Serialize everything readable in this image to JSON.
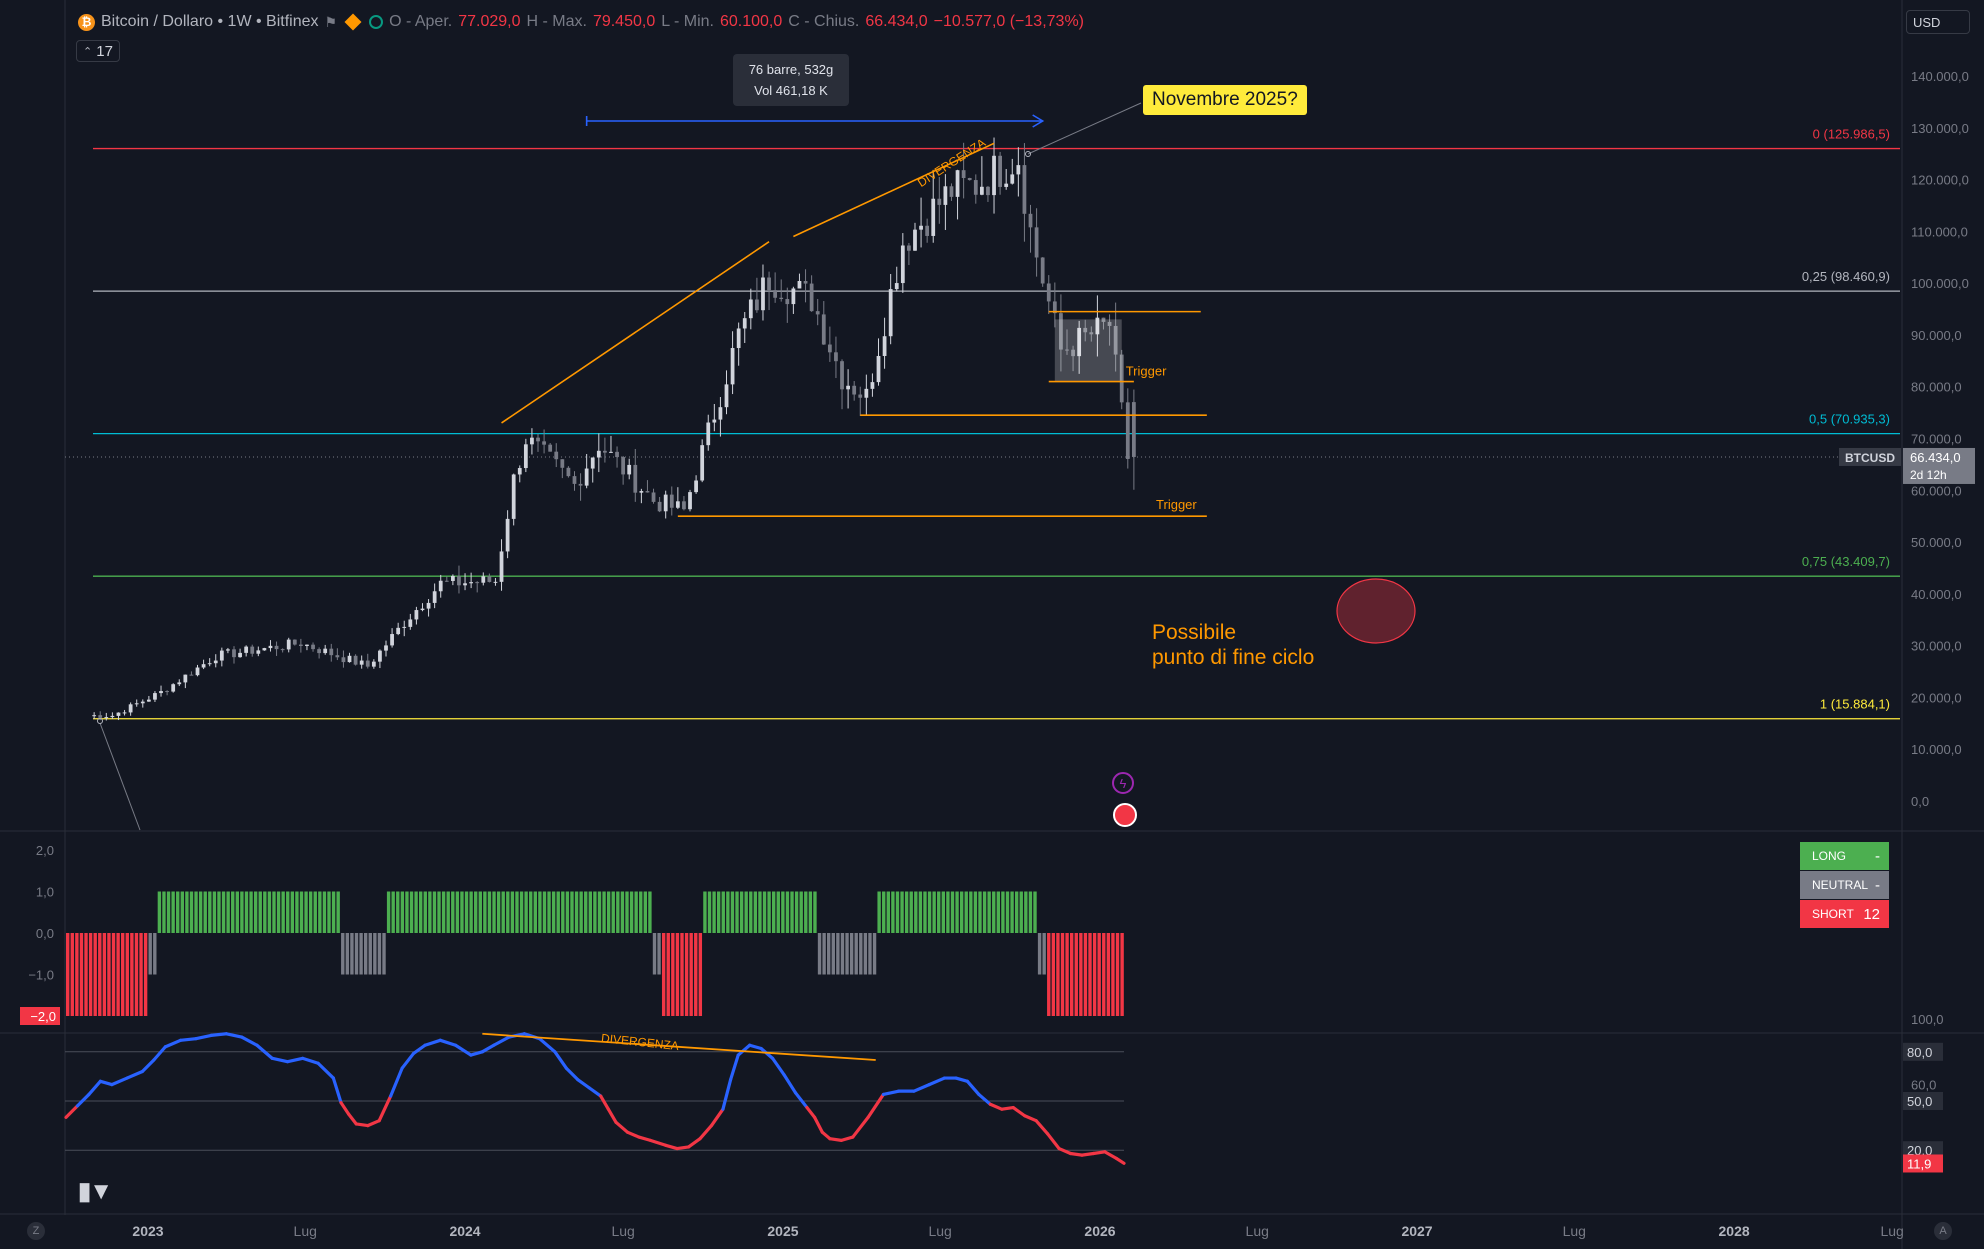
{
  "header": {
    "symbol": "Bitcoin / Dollaro • 1W • Bitfinex",
    "open_label": "O - Aper.",
    "open": "77.029,0",
    "high_label": "H - Max.",
    "high": "79.450,0",
    "low_label": "L - Min.",
    "low": "60.100,0",
    "close_label": "C - Chius.",
    "close": "66.434,0",
    "change": "−10.577,0 (−13,73%)",
    "collapse_count": "17",
    "currency": "USD"
  },
  "tooltip": {
    "bars": "76 barre, 532g",
    "vol": "Vol 461,18 K"
  },
  "callout": "Novembre 2025?",
  "note": {
    "line1": "Possibile",
    "line2": "punto di fine ciclo"
  },
  "price_tag": {
    "symbol": "BTCUSD",
    "price": "66.434,0",
    "countdown": "2d 12h"
  },
  "signal_panel": {
    "long_label": "LONG",
    "long_value": "-",
    "neutral_label": "NEUTRAL",
    "neutral_value": "-",
    "short_label": "SHORT",
    "short_value": "12"
  },
  "buttons": {
    "z": "Z",
    "a": "A"
  },
  "colors": {
    "background": "#131722",
    "grid": "#1e222d",
    "up_candle": "#d1d4dc",
    "down_candle": "#787b86",
    "fib_0": "#f23645",
    "fib_025": "#b2b5be",
    "fib_05": "#00bcd4",
    "fib_075": "#4caf50",
    "fib_1": "#ffeb3b",
    "orange": "#ff9800",
    "osc_high": "#2962ff",
    "osc_low": "#f23645",
    "bull": "#4caf50",
    "bear": "#f23645",
    "neutral": "#787b86"
  },
  "chart_data": [
    {
      "type": "candlestick",
      "title": "Bitcoin / Dollaro • 1W • Bitfinex",
      "price_axis": {
        "min": 0,
        "max": 140000,
        "ticks": [
          "140.000,0",
          "130.000,0",
          "120.000,0",
          "110.000,0",
          "100.000,0",
          "90.000,0",
          "80.000,0",
          "70.000,0",
          "60.000,0",
          "50.000,0",
          "40.000,0",
          "30.000,0",
          "20.000,0",
          "10.000,0",
          "0,0"
        ]
      },
      "time_axis": {
        "start": "2022-10-24",
        "end": "2028-10-01",
        "labels": [
          "2023",
          "Lug",
          "2024",
          "Lug",
          "2025",
          "Lug",
          "2026",
          "Lug",
          "2027",
          "Lug",
          "2028",
          "Lug"
        ]
      },
      "fib_levels": [
        {
          "label": "0 (125.986,5)",
          "value": 125986.5
        },
        {
          "label": "0,25 (98.460,9)",
          "value": 98460.9
        },
        {
          "label": "0,5 (70.935,3)",
          "value": 70935.3
        },
        {
          "label": "0,75 (43.409,7)",
          "value": 43409.7
        },
        {
          "label": "1 (15.884,1)",
          "value": 15884.1
        }
      ],
      "annotations": {
        "divergence": "DIVERGENZA",
        "trigger": "Trigger"
      },
      "key_points": [
        {
          "date": "2022-11-21",
          "close": 16500
        },
        {
          "date": "2023-01-16",
          "close": 21000
        },
        {
          "date": "2023-03-20",
          "close": 28000
        },
        {
          "date": "2023-06-26",
          "close": 30500
        },
        {
          "date": "2023-09-11",
          "close": 26000
        },
        {
          "date": "2023-10-23",
          "close": 34500
        },
        {
          "date": "2023-12-04",
          "close": 42000
        },
        {
          "date": "2024-02-05",
          "close": 42500
        },
        {
          "date": "2024-02-26",
          "close": 62000
        },
        {
          "date": "2024-03-11",
          "close": 70000
        },
        {
          "date": "2024-05-06",
          "close": 61000
        },
        {
          "date": "2024-06-03",
          "close": 69000
        },
        {
          "date": "2024-08-05",
          "close": 58000
        },
        {
          "date": "2024-09-09",
          "close": 56000
        },
        {
          "date": "2024-11-11",
          "close": 90000
        },
        {
          "date": "2024-12-16",
          "close": 101000
        },
        {
          "date": "2025-02-03",
          "close": 97000
        },
        {
          "date": "2025-03-10",
          "close": 82000
        },
        {
          "date": "2025-04-07",
          "close": 78000
        },
        {
          "date": "2025-05-19",
          "close": 108000
        },
        {
          "date": "2025-07-14",
          "close": 118000
        },
        {
          "date": "2025-08-11",
          "close": 119000
        },
        {
          "date": "2025-09-29",
          "close": 124500
        },
        {
          "date": "2025-10-13",
          "close": 110000
        },
        {
          "date": "2025-11-17",
          "close": 87000
        },
        {
          "date": "2026-01-12",
          "close": 92000
        },
        {
          "date": "2026-02-02",
          "close": 66434
        }
      ],
      "last_candle": {
        "open": 77029,
        "high": 79450,
        "low": 60100,
        "close": 66434
      }
    },
    {
      "type": "bar",
      "name": "signal",
      "y_axis": {
        "min": -2,
        "max": 2,
        "ticks": [
          "2,0",
          "1,0",
          "0,0",
          "−1,0",
          "−2,0"
        ]
      },
      "weekly_values": [
        -2,
        -2,
        -2,
        -2,
        -2,
        -2,
        -2,
        -2,
        -2,
        -2,
        -2,
        -2,
        -2,
        -2,
        -2,
        -2,
        -2,
        -2,
        -1,
        -1,
        1,
        1,
        1,
        1,
        1,
        1,
        1,
        1,
        1,
        1,
        1,
        1,
        1,
        1,
        1,
        1,
        1,
        1,
        1,
        1,
        1,
        1,
        1,
        1,
        1,
        1,
        1,
        1,
        1,
        1,
        1,
        1,
        1,
        1,
        1,
        1,
        1,
        1,
        1,
        1,
        -1,
        -1,
        -1,
        -1,
        -1,
        -1,
        -1,
        -1,
        -1,
        -1,
        1,
        1,
        1,
        1,
        1,
        1,
        1,
        1,
        1,
        1,
        1,
        1,
        1,
        1,
        1,
        1,
        1,
        1,
        1,
        1,
        1,
        1,
        1,
        1,
        1,
        1,
        1,
        1,
        1,
        1,
        1,
        1,
        1,
        1,
        1,
        1,
        1,
        1,
        1,
        1,
        1,
        1,
        1,
        1,
        1,
        1,
        1,
        1,
        1,
        1,
        1,
        1,
        1,
        1,
        1,
        1,
        1,
        1,
        -1,
        -1,
        -2,
        -2,
        -2,
        -2,
        -2,
        -2,
        -2,
        -2,
        -2,
        1,
        1,
        1,
        1,
        1,
        1,
        1,
        1,
        1,
        1,
        1,
        1,
        1,
        1,
        1,
        1,
        1,
        1,
        1,
        1,
        1,
        1,
        1,
        1,
        1,
        -1,
        -1,
        -1,
        -1,
        -1,
        -1,
        -1,
        -1,
        -1,
        -1,
        -1,
        -1,
        -1,
        1,
        1,
        1,
        1,
        1,
        1,
        1,
        1,
        1,
        1,
        1,
        1,
        1,
        1,
        1,
        1,
        1,
        1,
        1,
        1,
        1,
        1,
        1,
        1,
        1,
        1,
        1,
        1,
        1,
        1,
        1,
        1,
        1,
        1,
        1,
        -1,
        -1,
        -2,
        -2,
        -2,
        -2,
        -2,
        -2,
        -2,
        -2,
        -2,
        -2,
        -2,
        -2,
        -2,
        -2,
        -2,
        -2,
        -2
      ]
    },
    {
      "type": "line",
      "name": "oscillator",
      "y_axis": {
        "min": 0,
        "max": 100,
        "ticks": [
          "100,0",
          "60,0"
        ],
        "levels": [
          "80,0",
          "50,0",
          "20,0"
        ]
      },
      "current_value": "11,9",
      "annotation": "DIVERGENZA",
      "points": [
        [
          0,
          40
        ],
        [
          3,
          47
        ],
        [
          6,
          54
        ],
        [
          9,
          62
        ],
        [
          12,
          60
        ],
        [
          16,
          64
        ],
        [
          20,
          68
        ],
        [
          23,
          75
        ],
        [
          26,
          83
        ],
        [
          30,
          87
        ],
        [
          34,
          88
        ],
        [
          38,
          90
        ],
        [
          42,
          91
        ],
        [
          46,
          89
        ],
        [
          50,
          84
        ],
        [
          54,
          76
        ],
        [
          58,
          74
        ],
        [
          62,
          76
        ],
        [
          66,
          73
        ],
        [
          70,
          64
        ],
        [
          72,
          49
        ],
        [
          74,
          42
        ],
        [
          76,
          36
        ],
        [
          79,
          35
        ],
        [
          82,
          38
        ],
        [
          85,
          53
        ],
        [
          88,
          70
        ],
        [
          91,
          79
        ],
        [
          94,
          84
        ],
        [
          98,
          87
        ],
        [
          102,
          84
        ],
        [
          106,
          78
        ],
        [
          109,
          80
        ],
        [
          112,
          84
        ],
        [
          116,
          89
        ],
        [
          120,
          91
        ],
        [
          124,
          88
        ],
        [
          128,
          80
        ],
        [
          131,
          70
        ],
        [
          134,
          63
        ],
        [
          137,
          58
        ],
        [
          140,
          53
        ],
        [
          142,
          45
        ],
        [
          144,
          37
        ],
        [
          147,
          31
        ],
        [
          150,
          28
        ],
        [
          153,
          26
        ],
        [
          157,
          23
        ],
        [
          160,
          21
        ],
        [
          163,
          22
        ],
        [
          166,
          27
        ],
        [
          169,
          35
        ],
        [
          172,
          45
        ],
        [
          174,
          63
        ],
        [
          176,
          78
        ],
        [
          179,
          84
        ],
        [
          182,
          82
        ],
        [
          185,
          76
        ],
        [
          188,
          66
        ],
        [
          191,
          55
        ],
        [
          194,
          46
        ],
        [
          196,
          40
        ],
        [
          198,
          31
        ],
        [
          200,
          27
        ],
        [
          203,
          26
        ],
        [
          206,
          28
        ],
        [
          210,
          40
        ],
        [
          214,
          54
        ],
        [
          218,
          56
        ],
        [
          222,
          56
        ],
        [
          226,
          60
        ],
        [
          230,
          64
        ],
        [
          233,
          64
        ],
        [
          236,
          62
        ],
        [
          239,
          54
        ],
        [
          242,
          48
        ],
        [
          245,
          45
        ],
        [
          248,
          46
        ],
        [
          251,
          41
        ],
        [
          254,
          38
        ],
        [
          257,
          30
        ],
        [
          260,
          21
        ],
        [
          263,
          18
        ],
        [
          266,
          17
        ],
        [
          269,
          18
        ],
        [
          272,
          19
        ],
        [
          275,
          15
        ],
        [
          277,
          12
        ]
      ]
    }
  ]
}
